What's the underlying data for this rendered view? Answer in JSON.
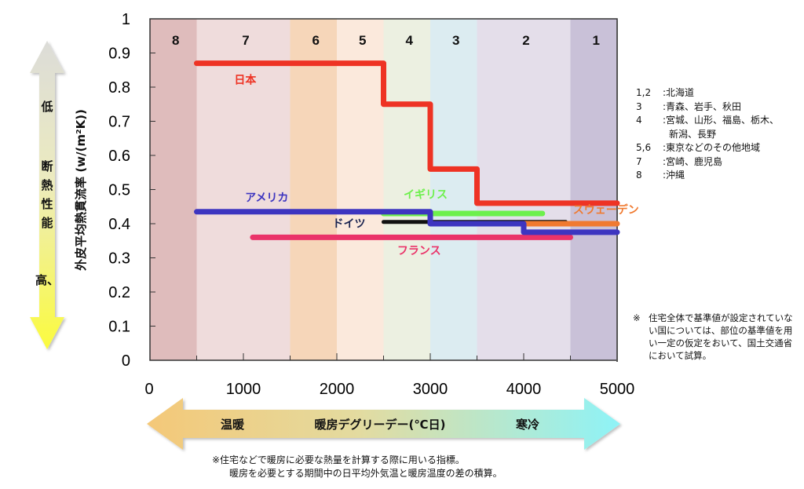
{
  "chart_data": {
    "type": "line",
    "subtype": "step",
    "title": "",
    "ylabel": "外皮平均熱貫流率 (w/(m²K))",
    "xlabel": "暖房デグリーデー (℃日)",
    "xlim": [
      0,
      5000
    ],
    "ylim": [
      0,
      1
    ],
    "xticks": [
      0,
      1000,
      2000,
      3000,
      4000,
      5000
    ],
    "yticks": [
      0,
      0.1,
      0.2,
      0.3,
      0.4,
      0.5,
      0.6,
      0.7,
      0.8,
      0.9,
      1
    ],
    "ytick_labels": [
      "0",
      "0.1",
      "0.2",
      "0.3",
      "0.4",
      "0.5",
      "0.6",
      "0.7",
      "0.8",
      "0.9",
      "1"
    ],
    "grid": false,
    "zones": [
      {
        "label": "8",
        "x0": 0,
        "x1": 500,
        "color": "#dfbcbc"
      },
      {
        "label": "7",
        "x0": 500,
        "x1": 1500,
        "color": "#efdcdc"
      },
      {
        "label": "6",
        "x0": 1500,
        "x1": 2000,
        "color": "#f6d6b9"
      },
      {
        "label": "5",
        "x0": 2000,
        "x1": 2500,
        "color": "#fbe9dc"
      },
      {
        "label": "4",
        "x0": 2500,
        "x1": 3000,
        "color": "#ecf0e1"
      },
      {
        "label": "3",
        "x0": 3000,
        "x1": 3500,
        "color": "#dcecf1"
      },
      {
        "label": "2",
        "x0": 3500,
        "x1": 4500,
        "color": "#e4deea"
      },
      {
        "label": "1",
        "x0": 4500,
        "x1": 5000,
        "color": "#c9c1d8"
      }
    ],
    "series": [
      {
        "name": "日本",
        "color": "#ee3324",
        "points": [
          [
            500,
            0.87
          ],
          [
            2500,
            0.87
          ],
          [
            2500,
            0.75
          ],
          [
            3000,
            0.75
          ],
          [
            3000,
            0.56
          ],
          [
            3500,
            0.56
          ],
          [
            3500,
            0.46
          ],
          [
            5000,
            0.46
          ]
        ],
        "label_pos": [
          1020,
          0.81
        ]
      },
      {
        "name": "アメリカ",
        "color": "#3d35c0",
        "points": [
          [
            500,
            0.435
          ],
          [
            3000,
            0.435
          ],
          [
            3000,
            0.4
          ],
          [
            4000,
            0.4
          ],
          [
            4000,
            0.375
          ],
          [
            5000,
            0.375
          ]
        ],
        "label_pos": [
          1250,
          0.465
        ]
      },
      {
        "name": "イギリス",
        "color": "#6df04c",
        "points": [
          [
            2500,
            0.43
          ],
          [
            4200,
            0.43
          ]
        ],
        "label_pos": [
          2950,
          0.475
        ]
      },
      {
        "name": "ドイツ",
        "color": "#111111",
        "points": [
          [
            2500,
            0.405
          ],
          [
            4450,
            0.405
          ]
        ],
        "label_pos": [
          2130,
          0.39
        ]
      },
      {
        "name": "スウェーデン",
        "color": "#f07a30",
        "points": [
          [
            4000,
            0.4
          ],
          [
            5000,
            0.4
          ]
        ],
        "label_pos": [
          4880,
          0.43
        ]
      },
      {
        "name": "フランス",
        "color": "#ea3369",
        "points": [
          [
            1100,
            0.36
          ],
          [
            4500,
            0.36
          ]
        ],
        "label_pos": [
          2880,
          0.31
        ]
      }
    ]
  },
  "left_arrow": {
    "top_label": "低",
    "middle_label": [
      "断",
      "熱",
      "性",
      "能"
    ],
    "bottom_label": "高、"
  },
  "bottom_arrow": {
    "left_label": "温暖",
    "center_label": "暖房デグリーデー(℃日)",
    "right_label": "寒冷"
  },
  "legend": {
    "rows": [
      {
        "key": "1,2",
        "value": ":北海道"
      },
      {
        "key": "3",
        "value": ":青森、岩手、秋田"
      },
      {
        "key": "4",
        "value": ":宮城、山形、福島、栃木、"
      },
      {
        "key": "",
        "value": "新潟、長野"
      },
      {
        "key": "5,6",
        "value": ":東京などのその他地域"
      },
      {
        "key": "7",
        "value": ":宮崎、鹿児島"
      },
      {
        "key": "8",
        "value": ":沖縄"
      }
    ]
  },
  "notes": {
    "right_mark": "※",
    "right_text": "住宅全体で基準値が設定されていない国については、部位の基準値を用い一定の仮定をおいて、国土交通省において試算。",
    "bottom_line1": "※住宅などで暖房に必要な熱量を計算する際に用いる指標。",
    "bottom_line2": "暖房を必要とする期間中の日平均外気温と暖房温度の差の積算。"
  }
}
